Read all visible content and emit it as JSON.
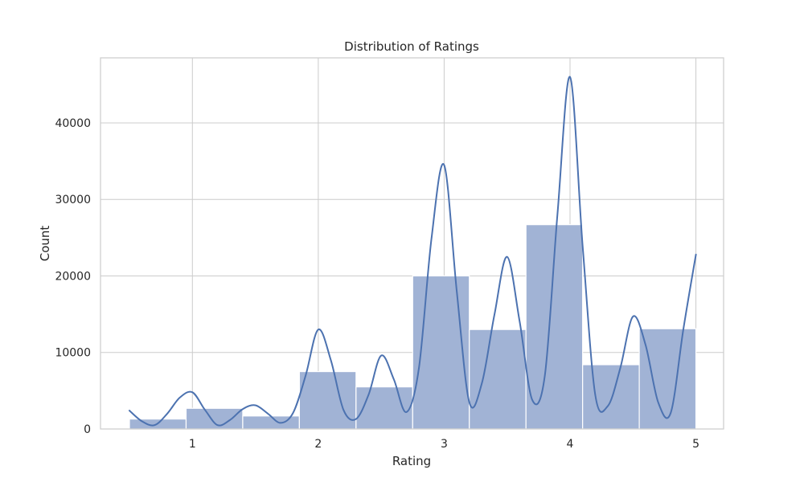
{
  "chart_data": {
    "type": "bar",
    "title": "Distribution of Ratings",
    "xlabel": "Rating",
    "ylabel": "Count",
    "xlim": [
      0.27,
      5.22
    ],
    "ylim": [
      0,
      48500
    ],
    "x_ticks": [
      1,
      2,
      3,
      4,
      5
    ],
    "y_ticks": [
      0,
      10000,
      20000,
      30000,
      40000
    ],
    "grid": true,
    "bins": [
      {
        "start": 0.5,
        "end": 0.95,
        "value": 1300
      },
      {
        "start": 0.95,
        "end": 1.4,
        "value": 2700
      },
      {
        "start": 1.4,
        "end": 1.85,
        "value": 1700
      },
      {
        "start": 1.85,
        "end": 2.3,
        "value": 7500
      },
      {
        "start": 2.3,
        "end": 2.75,
        "value": 5500
      },
      {
        "start": 2.75,
        "end": 3.2,
        "value": 20000
      },
      {
        "start": 3.2,
        "end": 3.65,
        "value": 13000
      },
      {
        "start": 3.65,
        "end": 4.1,
        "value": 26700
      },
      {
        "start": 4.1,
        "end": 4.55,
        "value": 8400
      },
      {
        "start": 4.55,
        "end": 5.0,
        "value": 13100
      }
    ],
    "kde": {
      "x": [
        0.5,
        0.6,
        0.7,
        0.8,
        0.9,
        1.0,
        1.1,
        1.2,
        1.3,
        1.4,
        1.5,
        1.6,
        1.7,
        1.8,
        1.9,
        2.0,
        2.1,
        2.2,
        2.3,
        2.4,
        2.5,
        2.6,
        2.7,
        2.8,
        2.9,
        3.0,
        3.1,
        3.2,
        3.3,
        3.4,
        3.5,
        3.6,
        3.7,
        3.8,
        3.9,
        4.0,
        4.1,
        4.2,
        4.3,
        4.4,
        4.5,
        4.6,
        4.7,
        4.8,
        4.9,
        5.0
      ],
      "y": [
        2400,
        1000,
        500,
        2000,
        4100,
        4800,
        2500,
        500,
        1200,
        2600,
        3100,
        2000,
        800,
        2100,
        7000,
        13000,
        9000,
        2500,
        1300,
        4500,
        9600,
        6500,
        2200,
        8000,
        25000,
        34500,
        18000,
        3500,
        6000,
        15000,
        22500,
        14000,
        3800,
        7000,
        28000,
        46000,
        24000,
        4500,
        3000,
        8000,
        14700,
        11000,
        3500,
        2100,
        13000,
        22800
      ]
    },
    "colors": {
      "bar": "#a1b3d5",
      "kde": "#4c72b0"
    }
  }
}
